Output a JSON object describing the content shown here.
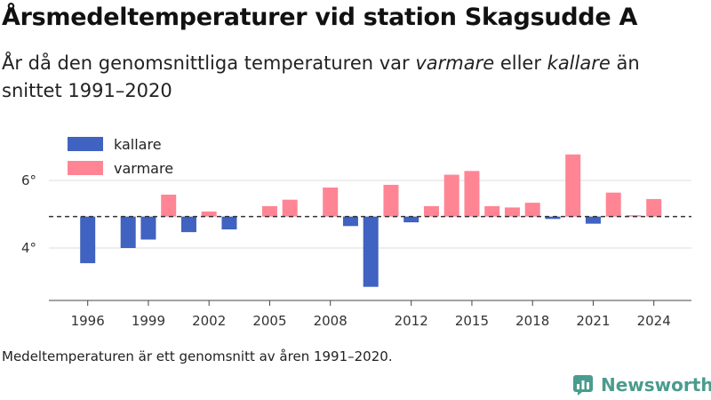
{
  "title": "Årsmedeltemperaturer vid station Skagsudde A",
  "subtitle": {
    "part1": "År då den genomsnittliga temperaturen var ",
    "warmer_em": "varmare",
    "part2": " eller ",
    "colder_em": "kallare",
    "part3": " än snittet 1991–2020"
  },
  "note": "Medeltemperaturen är ett genomsnitt av åren 1991–2020.",
  "brand": {
    "name": "Newsworthy",
    "logo_icon": "newsworthy-logo-icon",
    "color": "#4a9c8e"
  },
  "colors": {
    "kallare": "#4062c0",
    "varmare": "#ff8595",
    "baseline": "#333333",
    "grid": "#dcdcdc"
  },
  "chart_data": {
    "type": "bar",
    "baseline": 4.93,
    "ylim": [
      2.5,
      7.2
    ],
    "yticks": [
      {
        "value": 4,
        "label": "4°"
      },
      {
        "value": 6,
        "label": "6°"
      }
    ],
    "xticks": [
      {
        "year": 1996,
        "label": "1996"
      },
      {
        "year": 1999,
        "label": "1999"
      },
      {
        "year": 2002,
        "label": "2002"
      },
      {
        "year": 2005,
        "label": "2005"
      },
      {
        "year": 2008,
        "label": "2008"
      },
      {
        "year": 2012,
        "label": "2012"
      },
      {
        "year": 2015,
        "label": "2015"
      },
      {
        "year": 2018,
        "label": "2018"
      },
      {
        "year": 2021,
        "label": "2021"
      },
      {
        "year": 2024,
        "label": "2024"
      }
    ],
    "xlim": [
      1994.5,
      2026.5
    ],
    "legend": [
      {
        "key": "kallare",
        "label": "kallare"
      },
      {
        "key": "varmare",
        "label": "varmare"
      }
    ],
    "years": [
      1996,
      1998,
      1999,
      2000,
      2001,
      2002,
      2003,
      2005,
      2006,
      2008,
      2009,
      2010,
      2011,
      2012,
      2013,
      2014,
      2015,
      2016,
      2017,
      2018,
      2019,
      2020,
      2021,
      2022,
      2023,
      2024
    ],
    "values": [
      3.55,
      4.0,
      4.25,
      5.58,
      4.47,
      5.08,
      4.55,
      5.24,
      5.43,
      5.79,
      4.65,
      2.85,
      5.87,
      4.76,
      5.24,
      6.17,
      6.28,
      5.24,
      5.2,
      5.34,
      4.86,
      6.77,
      4.72,
      5.64,
      4.97,
      5.45
    ]
  }
}
